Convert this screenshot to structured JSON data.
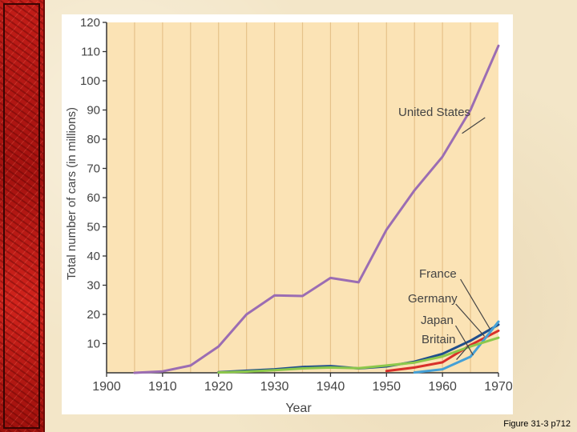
{
  "caption": "Figure 31-3 p712",
  "chart_data": {
    "type": "line",
    "title": "",
    "xlabel": "Year",
    "ylabel": "Total number of cars (in millions)",
    "xlim": [
      1900,
      1970
    ],
    "ylim": [
      0,
      120
    ],
    "x_ticks": [
      1900,
      1910,
      1920,
      1930,
      1940,
      1950,
      1960,
      1970
    ],
    "y_ticks": [
      10,
      20,
      30,
      40,
      50,
      60,
      70,
      80,
      90,
      100,
      110,
      120
    ],
    "grid": "vertical-every-5-years",
    "series": [
      {
        "name": "United States",
        "color": "#9b6db3",
        "x": [
          1905,
          1910,
          1915,
          1920,
          1925,
          1930,
          1935,
          1940,
          1945,
          1950,
          1955,
          1960,
          1965,
          1970
        ],
        "y": [
          0,
          0.5,
          2.5,
          9,
          20,
          26.5,
          26.3,
          32.5,
          31,
          49,
          62.5,
          74,
          90,
          112
        ]
      },
      {
        "name": "France",
        "color": "#1f4e8c",
        "x": [
          1920,
          1925,
          1930,
          1935,
          1940,
          1945,
          1950,
          1955,
          1960,
          1965,
          1970
        ],
        "y": [
          0.2,
          0.7,
          1.2,
          2,
          2.3,
          1.5,
          2.2,
          3.8,
          6.5,
          11,
          16.5
        ]
      },
      {
        "name": "Germany",
        "color": "#d8302a",
        "x": [
          1950,
          1955,
          1960,
          1965,
          1970
        ],
        "y": [
          0.6,
          1.8,
          3.6,
          9.5,
          14.4
        ]
      },
      {
        "name": "Japan",
        "color": "#45a0d6",
        "x": [
          1955,
          1960,
          1965,
          1970
        ],
        "y": [
          0.1,
          1.2,
          5.5,
          17.5
        ]
      },
      {
        "name": "Britain",
        "color": "#8cc84b",
        "x": [
          1920,
          1925,
          1930,
          1935,
          1940,
          1945,
          1950,
          1955,
          1960,
          1965,
          1970
        ],
        "y": [
          0.1,
          0.4,
          0.9,
          1.5,
          1.8,
          1.6,
          2.5,
          3.5,
          5.6,
          9,
          12
        ]
      }
    ]
  }
}
